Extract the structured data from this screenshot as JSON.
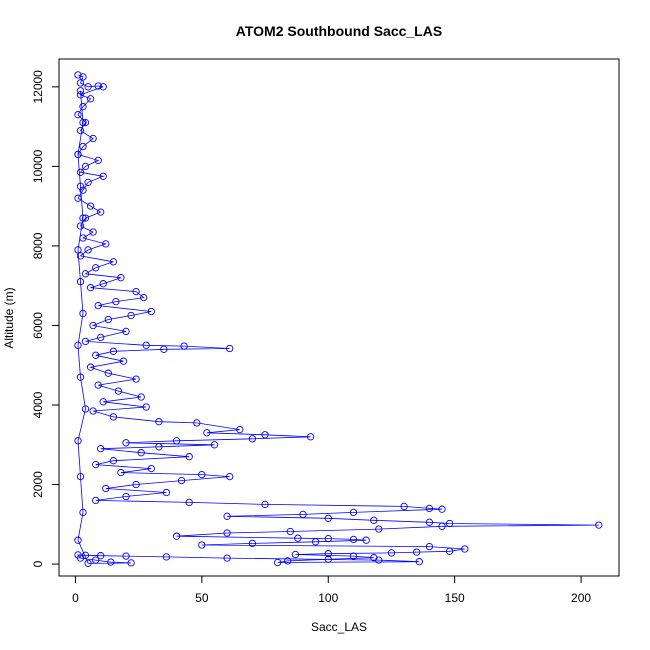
{
  "chart_data": {
    "type": "scatter",
    "title": "ATOM2 Southbound Sacc_LAS",
    "xlabel": "Sacc_LAS",
    "ylabel": "Altitude (m)",
    "xlim": [
      -6.5,
      215
    ],
    "ylim": [
      -300,
      12700
    ],
    "x_ticks": [
      0,
      50,
      100,
      150,
      200
    ],
    "y_ticks": [
      0,
      2000,
      4000,
      6000,
      8000,
      10000,
      12000
    ],
    "grid": false,
    "legend": "none",
    "series": [
      {
        "color": "#0000ff",
        "marker": "open-circle",
        "connected": true,
        "points": [
          [
            1,
            12300
          ],
          [
            3,
            12250
          ],
          [
            2,
            12100
          ],
          [
            5,
            12000
          ],
          [
            9,
            12020
          ],
          [
            11,
            12000
          ],
          [
            2,
            11800
          ],
          [
            6,
            11700
          ],
          [
            3,
            11500
          ],
          [
            1,
            11300
          ],
          [
            4,
            11100
          ],
          [
            2,
            10900
          ],
          [
            7,
            10700
          ],
          [
            3,
            10500
          ],
          [
            1,
            10300
          ],
          [
            9,
            10150
          ],
          [
            4,
            10000
          ],
          [
            2,
            9850
          ],
          [
            11,
            9750
          ],
          [
            5,
            9600
          ],
          [
            3,
            9400
          ],
          [
            1,
            9200
          ],
          [
            6,
            9000
          ],
          [
            10,
            8850
          ],
          [
            4,
            8700
          ],
          [
            2,
            8500
          ],
          [
            7,
            8350
          ],
          [
            3,
            8200
          ],
          [
            12,
            8050
          ],
          [
            5,
            7900
          ],
          [
            2,
            7750
          ],
          [
            15,
            7600
          ],
          [
            8,
            7450
          ],
          [
            4,
            7300
          ],
          [
            18,
            7200
          ],
          [
            11,
            7050
          ],
          [
            6,
            6950
          ],
          [
            24,
            6850
          ],
          [
            27,
            6700
          ],
          [
            16,
            6600
          ],
          [
            9,
            6500
          ],
          [
            30,
            6350
          ],
          [
            22,
            6250
          ],
          [
            13,
            6150
          ],
          [
            7,
            6000
          ],
          [
            20,
            5850
          ],
          [
            10,
            5700
          ],
          [
            4,
            5600
          ],
          [
            28,
            5500
          ],
          [
            43,
            5480
          ],
          [
            61,
            5420
          ],
          [
            35,
            5400
          ],
          [
            15,
            5350
          ],
          [
            8,
            5250
          ],
          [
            19,
            5100
          ],
          [
            6,
            4950
          ],
          [
            13,
            4800
          ],
          [
            24,
            4650
          ],
          [
            9,
            4500
          ],
          [
            17,
            4350
          ],
          [
            26,
            4200
          ],
          [
            11,
            4080
          ],
          [
            28,
            3950
          ],
          [
            7,
            3850
          ],
          [
            15,
            3700
          ],
          [
            33,
            3580
          ],
          [
            48,
            3550
          ],
          [
            65,
            3380
          ],
          [
            52,
            3300
          ],
          [
            75,
            3250
          ],
          [
            93,
            3200
          ],
          [
            70,
            3150
          ],
          [
            40,
            3100
          ],
          [
            20,
            3050
          ],
          [
            55,
            3000
          ],
          [
            33,
            2950
          ],
          [
            10,
            2900
          ],
          [
            26,
            2800
          ],
          [
            45,
            2700
          ],
          [
            15,
            2600
          ],
          [
            8,
            2500
          ],
          [
            30,
            2400
          ],
          [
            18,
            2300
          ],
          [
            50,
            2250
          ],
          [
            61,
            2200
          ],
          [
            42,
            2100
          ],
          [
            24,
            2000
          ],
          [
            12,
            1900
          ],
          [
            36,
            1800
          ],
          [
            20,
            1700
          ],
          [
            8,
            1600
          ],
          [
            45,
            1550
          ],
          [
            75,
            1500
          ],
          [
            130,
            1450
          ],
          [
            140,
            1400
          ],
          [
            145,
            1380
          ],
          [
            110,
            1300
          ],
          [
            90,
            1250
          ],
          [
            60,
            1200
          ],
          [
            100,
            1150
          ],
          [
            118,
            1100
          ],
          [
            140,
            1050
          ],
          [
            148,
            1020
          ],
          [
            207,
            980
          ],
          [
            145,
            950
          ],
          [
            120,
            880
          ],
          [
            85,
            820
          ],
          [
            60,
            780
          ],
          [
            40,
            700
          ],
          [
            88,
            650
          ],
          [
            100,
            640
          ],
          [
            110,
            620
          ],
          [
            115,
            600
          ],
          [
            95,
            560
          ],
          [
            70,
            520
          ],
          [
            50,
            480
          ],
          [
            140,
            440
          ],
          [
            154,
            380
          ],
          [
            148,
            320
          ],
          [
            135,
            300
          ],
          [
            125,
            280
          ],
          [
            100,
            260
          ],
          [
            87,
            240
          ],
          [
            110,
            200
          ],
          [
            118,
            160
          ],
          [
            100,
            120
          ],
          [
            84,
            80
          ],
          [
            80,
            40
          ],
          [
            136,
            60
          ],
          [
            120,
            100
          ],
          [
            60,
            150
          ],
          [
            36,
            180
          ],
          [
            20,
            200
          ],
          [
            10,
            210
          ],
          [
            4,
            220
          ],
          [
            1,
            230
          ],
          [
            2,
            150
          ],
          [
            8,
            100
          ],
          [
            14,
            50
          ],
          [
            22,
            30
          ],
          [
            5,
            20
          ],
          [
            1,
            600
          ],
          [
            3,
            1300
          ],
          [
            2,
            2200
          ],
          [
            1,
            3100
          ],
          [
            4,
            3900
          ],
          [
            2,
            4700
          ],
          [
            1,
            5500
          ],
          [
            3,
            6300
          ],
          [
            2,
            7100
          ],
          [
            1,
            7900
          ],
          [
            3,
            8700
          ],
          [
            2,
            9500
          ],
          [
            1,
            10300
          ],
          [
            3,
            11100
          ],
          [
            2,
            11900
          ]
        ]
      }
    ]
  }
}
